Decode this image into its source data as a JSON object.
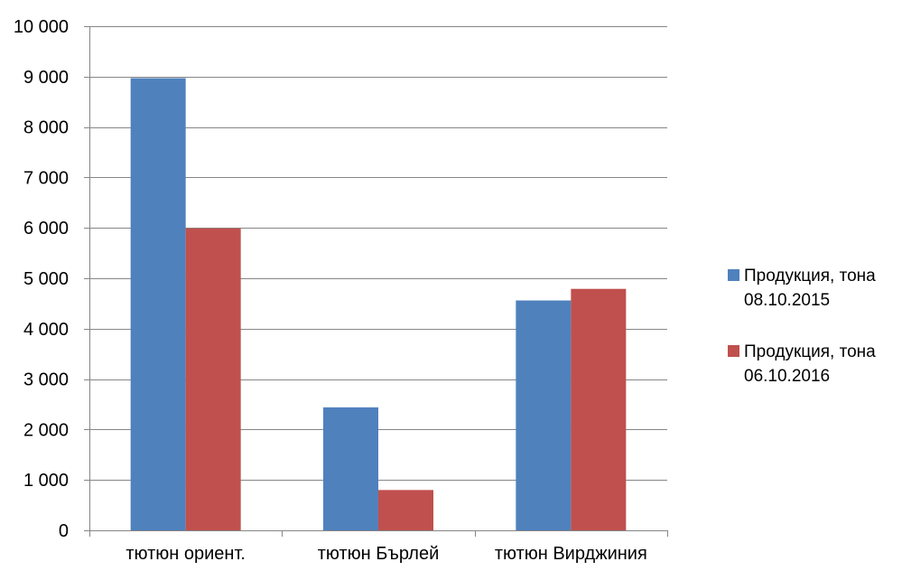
{
  "chart_data": {
    "type": "bar",
    "title": "",
    "xlabel": "",
    "ylabel": "",
    "categories": [
      "тютюн ориент.",
      "тютюн Бърлей",
      "тютюн Вирджиния"
    ],
    "series": [
      {
        "name": "Продукция, тона 08.10.2015",
        "name_lines": [
          "Продукция, тона",
          "08.10.2015"
        ],
        "color": "#4f81bd",
        "values": [
          8970,
          2440,
          4560
        ]
      },
      {
        "name": "Продукция, тона 06.10.2016",
        "name_lines": [
          "Продукция, тона",
          "06.10.2016"
        ],
        "color": "#c0504d",
        "values": [
          5990,
          800,
          4790
        ]
      }
    ],
    "ylim": [
      0,
      10000
    ],
    "yticks": [
      0,
      1000,
      2000,
      3000,
      4000,
      5000,
      6000,
      7000,
      8000,
      9000,
      10000
    ],
    "ytick_labels": [
      "0",
      "1 000",
      "2 000",
      "3 000",
      "4 000",
      "5 000",
      "6 000",
      "7 000",
      "8 000",
      "9 000",
      "10 000"
    ],
    "grid": true,
    "legend_position": "right"
  }
}
